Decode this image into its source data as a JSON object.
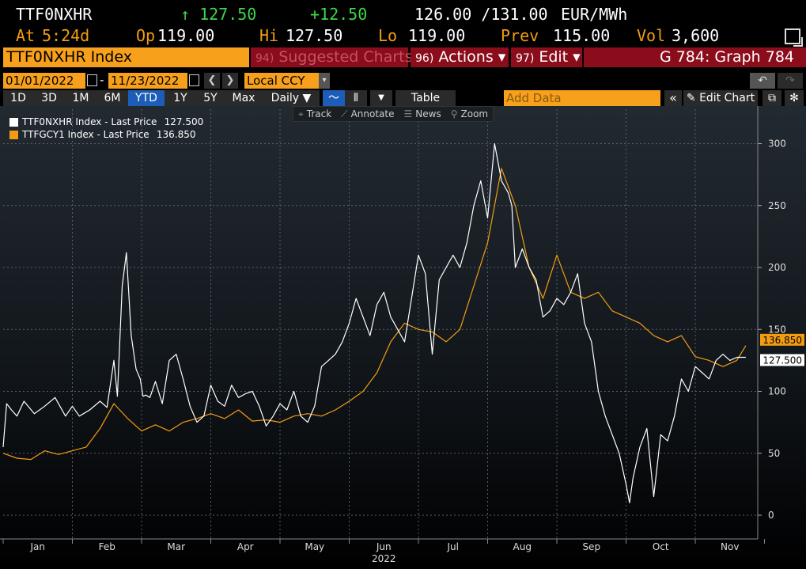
{
  "header": {
    "ticker": "TTF0NXHR",
    "last": "↑ 127.50",
    "change": "+12.50",
    "bid_ask": "126.00 /131.00",
    "unit": "EUR/MWh"
  },
  "ohlc": {
    "at_label": "At",
    "at_val": "5:24d",
    "open_label": "Op",
    "open_val": "119.00",
    "high_label": "Hi",
    "high_val": "127.50",
    "low_label": "Lo",
    "low_val": "119.00",
    "prev_label": "Prev",
    "prev_val": "115.00",
    "vol_label": "Vol",
    "vol_val": "3,600"
  },
  "titlebar": {
    "title": "TTF0NXHR Index",
    "suggested_num": "94)",
    "suggested": "Suggested Charts",
    "actions_num": "96)",
    "actions": "Actions ▾",
    "edit_num": "97)",
    "edit": "Edit ▾",
    "graph": "G 784: Graph 784"
  },
  "dates": {
    "start": "01/01/2022",
    "end": "11/23/2022",
    "dash": "-",
    "prev": "❮",
    "next": "❯",
    "currency": "Local CCY",
    "undo": "↶",
    "redo": "↷"
  },
  "toolbar": {
    "ranges": [
      "1D",
      "3D",
      "1M",
      "6M",
      "YTD",
      "1Y",
      "5Y",
      "Max"
    ],
    "active_range": "YTD",
    "frequency": "Daily ▼",
    "table": "Table",
    "add_data_placeholder": "Add Data",
    "collapse": "«",
    "edit_chart": "Edit Chart"
  },
  "tools": {
    "track": "Track",
    "annotate": "Annotate",
    "news": "News",
    "zoom": "Zoom"
  },
  "legend": [
    {
      "name": "TTF0NXHR Index - Last Price",
      "value": "127.500",
      "color": "#ffffff"
    },
    {
      "name": "TTFGCY1 Index - Last Price",
      "value": "136.850",
      "color": "#f39c12"
    }
  ],
  "chart_data": {
    "type": "line",
    "x_unit": "month index (0 = Jan 1, 2022)",
    "xlabel": "2022",
    "x_tick_labels": [
      "Jan",
      "Feb",
      "Mar",
      "Apr",
      "May",
      "Jun",
      "Jul",
      "Aug",
      "Sep",
      "Oct",
      "Nov"
    ],
    "ylim": [
      -10,
      330
    ],
    "y_ticks": [
      0,
      50,
      100,
      150,
      200,
      250,
      300
    ],
    "grid": true,
    "legend_position": "top-left",
    "last_labels": [
      "136.850",
      "127.500"
    ],
    "series": [
      {
        "name": "TTF0NXHR Index - Last Price",
        "color": "#ffffff",
        "x": [
          0,
          0.05,
          0.12,
          0.2,
          0.3,
          0.45,
          0.6,
          0.75,
          0.9,
          1.0,
          1.1,
          1.25,
          1.4,
          1.5,
          1.6,
          1.65,
          1.72,
          1.78,
          1.85,
          1.92,
          1.98,
          2.02,
          2.06,
          2.12,
          2.2,
          2.3,
          2.4,
          2.5,
          2.6,
          2.7,
          2.8,
          2.9,
          3.0,
          3.1,
          3.2,
          3.3,
          3.4,
          3.5,
          3.6,
          3.7,
          3.8,
          3.9,
          4.0,
          4.1,
          4.2,
          4.3,
          4.4,
          4.5,
          4.6,
          4.7,
          4.8,
          4.9,
          5.0,
          5.1,
          5.2,
          5.3,
          5.4,
          5.5,
          5.6,
          5.7,
          5.8,
          5.9,
          6.0,
          6.1,
          6.2,
          6.3,
          6.4,
          6.5,
          6.55,
          6.6,
          6.7,
          6.8,
          6.9,
          7.0,
          7.1,
          7.2,
          7.3,
          7.35,
          7.4,
          7.5,
          7.6,
          7.7,
          7.8,
          7.9,
          8.0,
          8.1,
          8.2,
          8.3,
          8.4,
          8.5,
          8.6,
          8.7,
          8.8,
          8.9,
          9.0,
          9.05,
          9.1,
          9.2,
          9.3,
          9.4,
          9.5,
          9.6,
          9.7,
          9.8,
          9.9,
          10.0,
          10.1,
          10.2,
          10.3,
          10.4,
          10.5,
          10.6,
          10.73
        ],
        "y": [
          55,
          90,
          85,
          80,
          92,
          82,
          88,
          95,
          80,
          88,
          80,
          85,
          92,
          87,
          125,
          96,
          185,
          212,
          145,
          118,
          110,
          96,
          97,
          95,
          108,
          90,
          125,
          130,
          110,
          88,
          75,
          80,
          105,
          92,
          88,
          105,
          95,
          98,
          100,
          88,
          72,
          80,
          90,
          85,
          100,
          80,
          75,
          88,
          120,
          125,
          130,
          140,
          155,
          175,
          160,
          145,
          170,
          180,
          160,
          150,
          140,
          175,
          210,
          195,
          130,
          190,
          200,
          210,
          205,
          200,
          220,
          250,
          270,
          240,
          300,
          270,
          260,
          250,
          200,
          215,
          200,
          190,
          160,
          165,
          175,
          170,
          180,
          195,
          155,
          140,
          100,
          80,
          65,
          50,
          25,
          10,
          30,
          55,
          70,
          15,
          65,
          60,
          80,
          110,
          100,
          120,
          115,
          110,
          125,
          130,
          125,
          127.5,
          127.5
        ]
      },
      {
        "name": "TTFGCY1 Index - Last Price",
        "color": "#f39c12",
        "x": [
          0,
          0.2,
          0.4,
          0.6,
          0.8,
          1.0,
          1.2,
          1.4,
          1.6,
          1.8,
          2.0,
          2.2,
          2.4,
          2.6,
          2.8,
          3.0,
          3.2,
          3.4,
          3.6,
          3.8,
          4.0,
          4.2,
          4.4,
          4.6,
          4.8,
          5.0,
          5.2,
          5.4,
          5.6,
          5.8,
          6.0,
          6.2,
          6.4,
          6.6,
          6.8,
          7.0,
          7.2,
          7.4,
          7.6,
          7.8,
          8.0,
          8.2,
          8.4,
          8.6,
          8.8,
          9.0,
          9.2,
          9.4,
          9.6,
          9.8,
          10.0,
          10.2,
          10.4,
          10.6,
          10.73
        ],
        "y": [
          50,
          46,
          45,
          52,
          49,
          52,
          55,
          70,
          90,
          78,
          68,
          73,
          68,
          75,
          78,
          82,
          78,
          85,
          76,
          77,
          75,
          80,
          82,
          80,
          85,
          92,
          100,
          115,
          140,
          155,
          150,
          148,
          140,
          150,
          185,
          220,
          280,
          250,
          200,
          175,
          210,
          180,
          175,
          180,
          165,
          160,
          155,
          145,
          140,
          145,
          128,
          125,
          120,
          125,
          136.85
        ]
      }
    ]
  }
}
